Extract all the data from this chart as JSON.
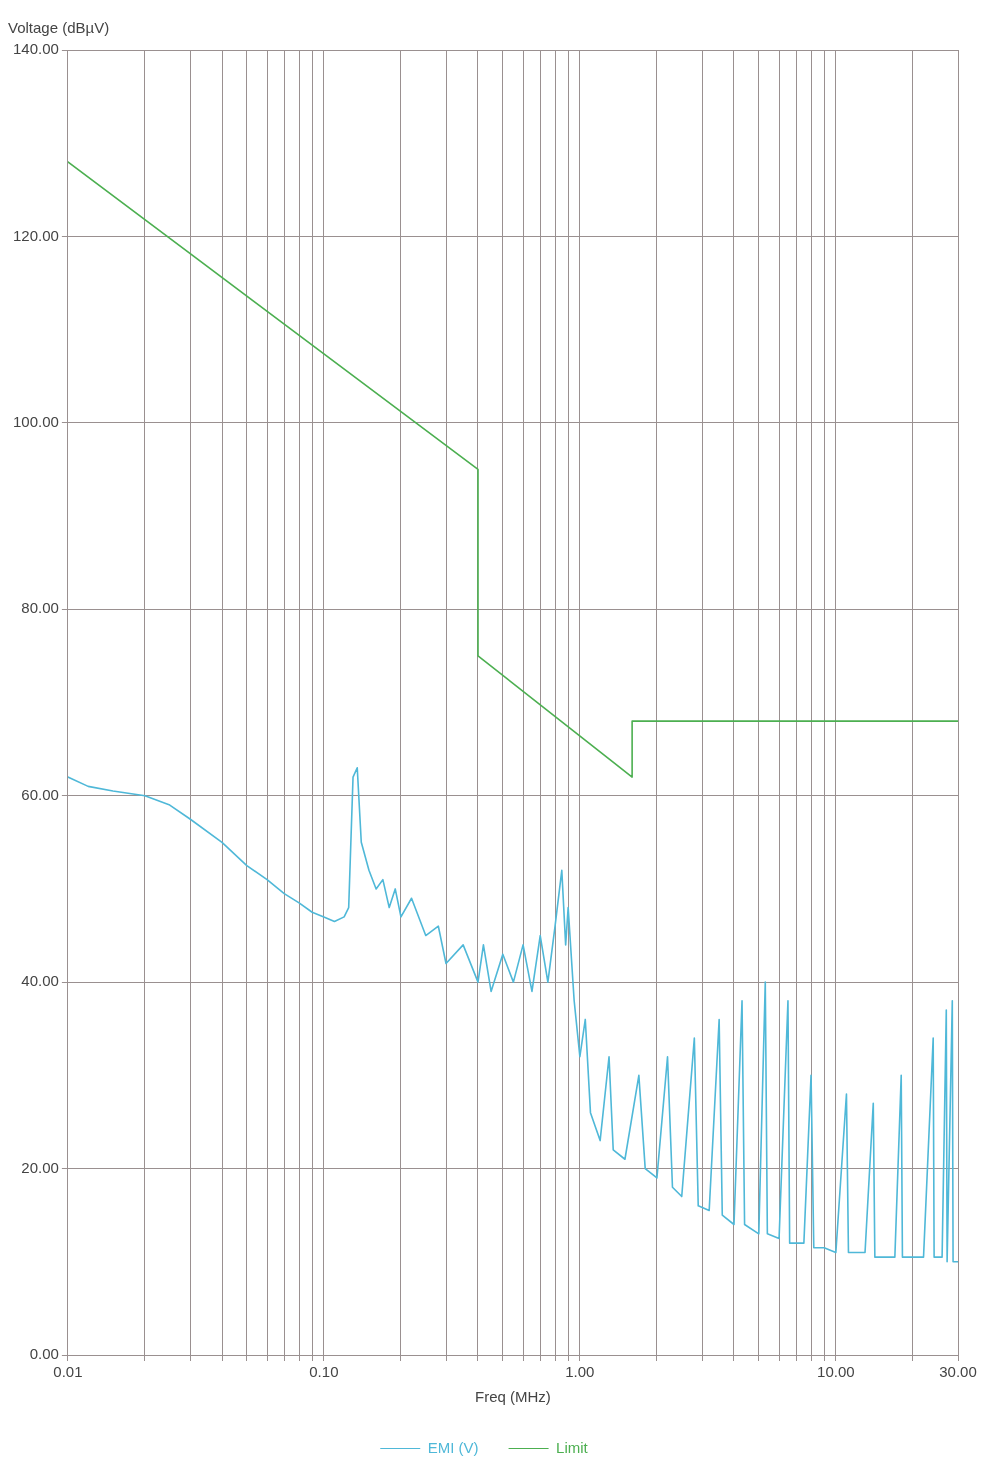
{
  "chart_data": {
    "type": "line",
    "xlabel": "Freq (MHz)",
    "ylabel": "Voltage (dBµV)",
    "log": "x",
    "grid": true,
    "legend": "bottom",
    "marker": "none",
    "line_style": "solid",
    "xlim": [
      0.01,
      30
    ],
    "xticks": [
      0.01,
      {
        "value": 0.02,
        "label": null
      },
      {
        "value": 0.03,
        "label": null
      },
      {
        "value": 0.04,
        "label": null
      },
      {
        "value": 0.05,
        "label": null
      },
      {
        "value": 0.06,
        "label": null
      },
      {
        "value": 0.07,
        "label": null
      },
      {
        "value": 0.08,
        "label": null
      },
      {
        "value": 0.09,
        "label": null
      },
      {
        "value": 0.1,
        "label": "0.10"
      },
      {
        "value": 0.2,
        "label": null
      },
      {
        "value": 0.3,
        "label": null
      },
      {
        "value": 0.4,
        "label": null
      },
      {
        "value": 0.5,
        "label": null
      },
      {
        "value": 0.6,
        "label": null
      },
      {
        "value": 0.7,
        "label": null
      },
      {
        "value": 0.8,
        "label": null
      },
      {
        "value": 0.9,
        "label": null
      },
      {
        "value": 1,
        "label": "1.00"
      },
      {
        "value": 2,
        "label": null
      },
      {
        "value": 3,
        "label": null
      },
      {
        "value": 4,
        "label": null
      },
      {
        "value": 5,
        "label": null
      },
      {
        "value": 6,
        "label": null
      },
      {
        "value": 7,
        "label": null
      },
      {
        "value": 8,
        "label": null
      },
      {
        "value": 9,
        "label": null
      },
      {
        "value": 10,
        "label": "10.00"
      },
      {
        "value": 20,
        "label": null
      },
      {
        "value": 30,
        "label": "30.00"
      }
    ],
    "ylim": [
      0,
      140
    ],
    "yticks": [
      {
        "value": 0,
        "label": "0.00"
      },
      {
        "value": 20,
        "label": "20.00"
      },
      {
        "value": 40,
        "label": "40.00"
      },
      {
        "value": 60,
        "label": "60.00"
      },
      {
        "value": 80,
        "label": "80.00"
      },
      {
        "value": 100,
        "label": "100.00"
      },
      {
        "value": 120,
        "label": "120.00"
      },
      {
        "value": 140,
        "label": "140.00"
      }
    ],
    "series": [
      {
        "name": "EMI (V)",
        "color": "#4fb8d8",
        "x": [
          0.01,
          0.012,
          0.015,
          0.02,
          0.025,
          0.03,
          0.04,
          0.05,
          0.06,
          0.07,
          0.08,
          0.09,
          0.1,
          0.11,
          0.12,
          0.125,
          0.13,
          0.135,
          0.14,
          0.15,
          0.16,
          0.17,
          0.18,
          0.19,
          0.2,
          0.22,
          0.25,
          0.28,
          0.3,
          0.35,
          0.4,
          0.42,
          0.45,
          0.5,
          0.55,
          0.6,
          0.65,
          0.7,
          0.75,
          0.8,
          0.85,
          0.88,
          0.9,
          0.95,
          1.0,
          1.05,
          1.1,
          1.2,
          1.3,
          1.35,
          1.5,
          1.7,
          1.8,
          2.0,
          2.2,
          2.3,
          2.5,
          2.8,
          2.9,
          3.2,
          3.5,
          3.6,
          4,
          4.3,
          4.4,
          5,
          5.3,
          5.4,
          6,
          6.5,
          6.6,
          7.5,
          8,
          8.2,
          9,
          10,
          11,
          11.2,
          13,
          14,
          14.2,
          17,
          18,
          18.2,
          22,
          24,
          24.2,
          26,
          27,
          27.2,
          28.5,
          28.7,
          30
        ],
        "values": [
          62,
          61,
          60.5,
          60,
          59,
          57.5,
          55,
          52.5,
          51,
          49.5,
          48.5,
          47.5,
          47,
          46.5,
          47,
          48,
          62,
          63,
          55,
          52,
          50,
          51,
          48,
          50,
          47,
          49,
          45,
          46,
          42,
          44,
          40,
          44,
          39,
          43,
          40,
          44,
          39,
          45,
          40,
          46,
          52,
          44,
          48,
          38,
          32,
          36,
          26,
          23,
          32,
          22,
          21,
          30,
          20,
          19,
          32,
          18,
          17,
          34,
          16,
          15.5,
          36,
          15,
          14,
          38,
          14,
          13,
          40,
          13,
          12.5,
          38,
          12,
          12,
          30,
          11.5,
          11.5,
          11,
          28,
          11,
          11,
          27,
          10.5,
          10.5,
          30,
          10.5,
          10.5,
          34,
          10.5,
          10.5,
          37,
          10,
          38,
          10,
          10
        ]
      },
      {
        "name": "Limit",
        "color": "#4caf50",
        "x": [
          0.01,
          0.4,
          0.4,
          1.6,
          1.6,
          30
        ],
        "values": [
          128,
          95,
          75,
          62,
          68,
          68
        ]
      }
    ]
  }
}
